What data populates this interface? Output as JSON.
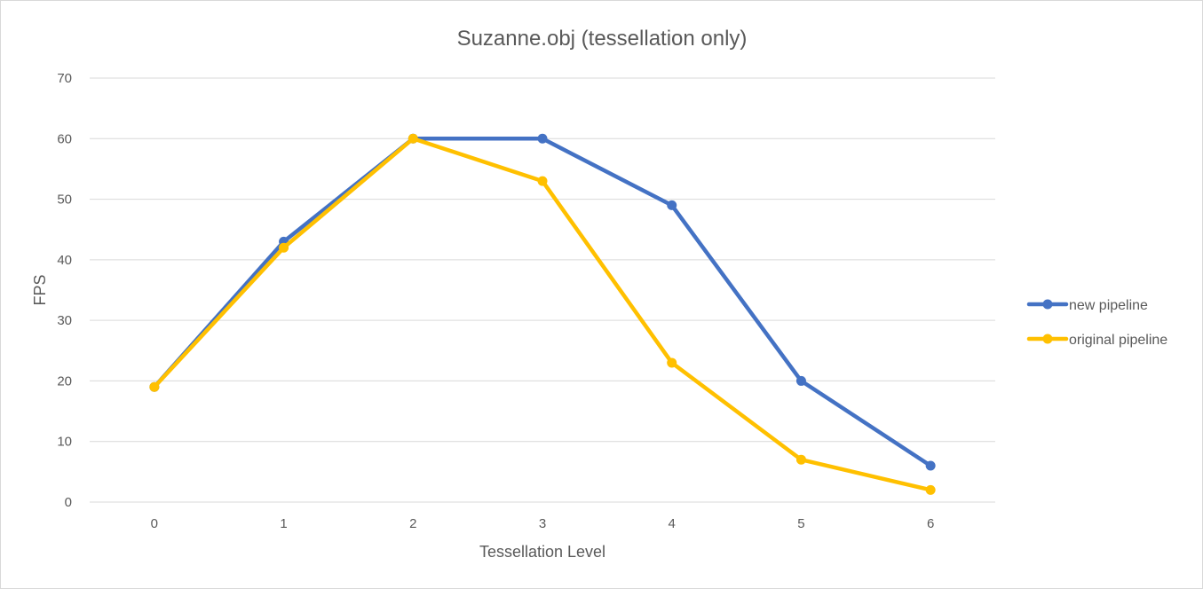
{
  "chart_data": {
    "type": "line",
    "title": "Suzanne.obj  (tessellation only)",
    "xlabel": "Tessellation Level",
    "ylabel": "FPS",
    "categories": [
      "0",
      "1",
      "2",
      "3",
      "4",
      "5",
      "6"
    ],
    "ylim": [
      0,
      70
    ],
    "yticks": [
      "0",
      "10",
      "20",
      "30",
      "40",
      "50",
      "60",
      "70"
    ],
    "grid": true,
    "legend_position": "right",
    "series": [
      {
        "name": "new pipeline",
        "color": "#4472C4",
        "values": [
          19,
          43,
          60,
          60,
          49,
          20,
          6
        ]
      },
      {
        "name": "original pipeline",
        "color": "#FFC000",
        "values": [
          19,
          42,
          60,
          53,
          23,
          7,
          2
        ]
      }
    ]
  }
}
